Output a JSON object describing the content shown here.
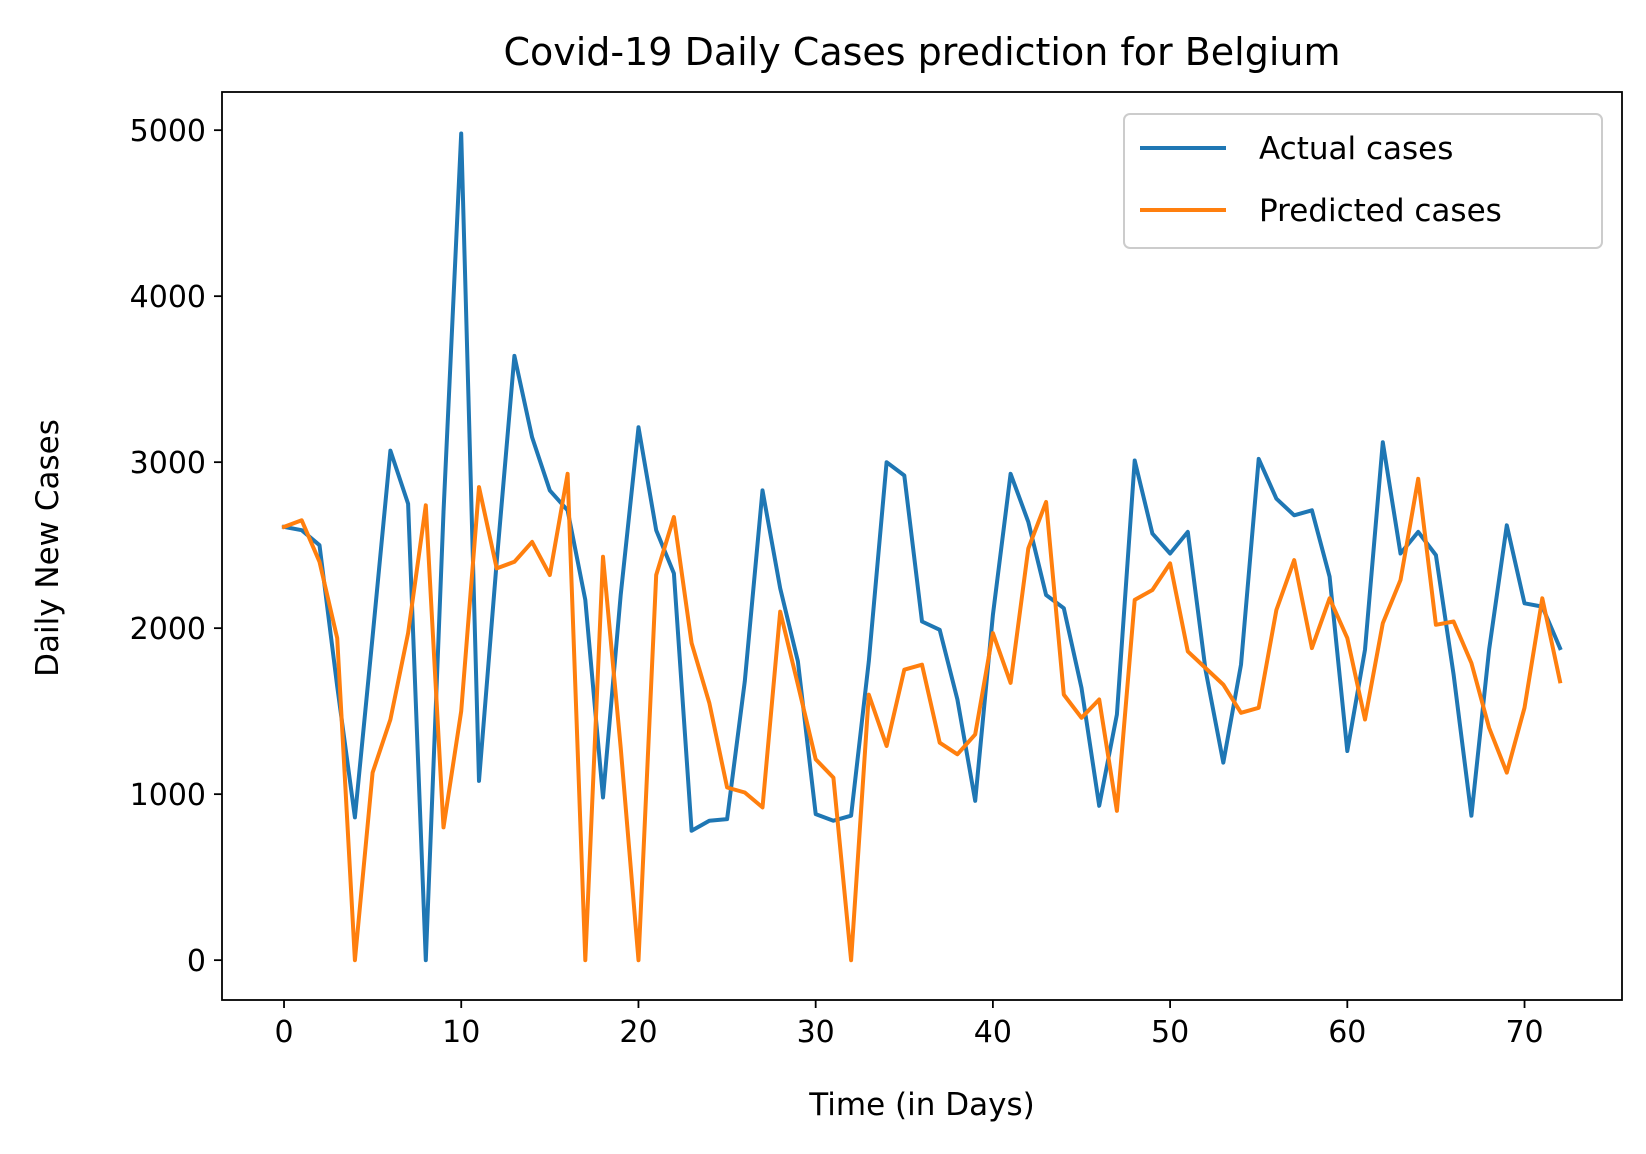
{
  "chart_data": {
    "type": "line",
    "title": "Covid-19 Daily Cases prediction for Belgium",
    "xlabel": "Time (in Days)",
    "ylabel": "Daily New Cases",
    "xlim": [
      -3.5,
      75.5
    ],
    "ylim": [
      -240,
      5230
    ],
    "xticks": [
      0,
      10,
      20,
      30,
      40,
      50,
      60,
      70
    ],
    "yticks": [
      0,
      1000,
      2000,
      3000,
      4000,
      5000
    ],
    "legend_position": "top-right",
    "grid": false,
    "series": [
      {
        "name": "Actual cases",
        "color": "#1f77b4",
        "values": [
          2610,
          2590,
          2500,
          1650,
          860,
          1950,
          3070,
          2750,
          0,
          2700,
          4980,
          1080,
          2400,
          3640,
          3150,
          2830,
          2710,
          2170,
          980,
          2200,
          3210,
          2590,
          2330,
          780,
          840,
          850,
          1680,
          2830,
          2240,
          1800,
          880,
          840,
          870,
          1800,
          3000,
          2920,
          2040,
          1990,
          1570,
          960,
          2080,
          2930,
          2640,
          2200,
          2120,
          1640,
          930,
          1480,
          3010,
          2570,
          2450,
          2580,
          1750,
          1190,
          1780,
          3020,
          2780,
          2680,
          2710,
          2310,
          1260,
          1870,
          3120,
          2450,
          2580,
          2440,
          1720,
          870,
          1870,
          2620,
          2150,
          2130,
          1880
        ]
      },
      {
        "name": "Predicted cases",
        "color": "#ff7f0e",
        "values": [
          2610,
          2650,
          2400,
          1940,
          0,
          1130,
          1450,
          1970,
          2740,
          800,
          1500,
          2850,
          2360,
          2400,
          2520,
          2320,
          2930,
          0,
          2430,
          1280,
          0,
          2320,
          2670,
          1910,
          1550,
          1040,
          1010,
          920,
          2100,
          1660,
          1210,
          1100,
          0,
          1600,
          1290,
          1750,
          1780,
          1310,
          1240,
          1360,
          1970,
          1670,
          2480,
          2760,
          1600,
          1460,
          1570,
          900,
          2170,
          2230,
          2390,
          1860,
          1760,
          1660,
          1490,
          1520,
          2110,
          2410,
          1880,
          2180,
          1940,
          1450,
          2030,
          2290,
          2900,
          2020,
          2040,
          1790,
          1400,
          1130,
          1520,
          2180,
          1680
        ]
      }
    ]
  }
}
